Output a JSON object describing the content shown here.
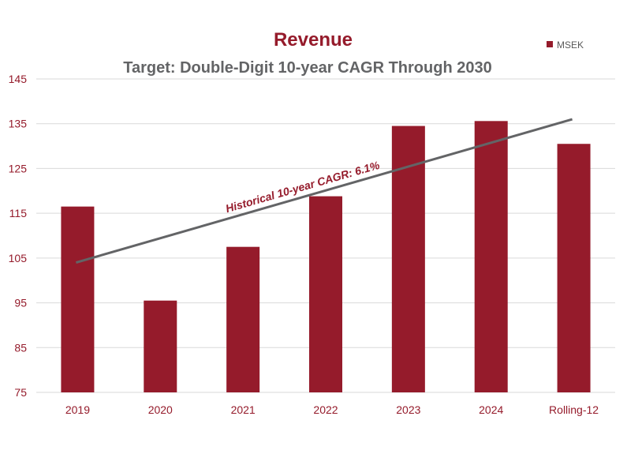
{
  "colors": {
    "bar": "#951b2b",
    "trend": "#636466",
    "axis_text": "#951b2b",
    "subtitle": "#636466",
    "grid": "#d9d9d9",
    "annotation": "#951b2b"
  },
  "chart_data": {
    "type": "bar",
    "title": "Revenue",
    "subtitle": "Target: Double-Digit 10-year CAGR Through 2030",
    "categories": [
      "2019",
      "2020",
      "2021",
      "2022",
      "2023",
      "2024",
      "Rolling-12"
    ],
    "series": [
      {
        "name": "MSEK",
        "values": [
          116.5,
          95.5,
          107.5,
          118.8,
          134.5,
          135.6,
          130.5
        ]
      }
    ],
    "trend_line": {
      "start_value": 104.0,
      "end_value": 136.0
    },
    "annotation": "Historical 10-year CAGR: 6.1%",
    "ylim": [
      75,
      145
    ],
    "yticks": [
      "75",
      "85",
      "95",
      "105",
      "115",
      "125",
      "135",
      "145"
    ],
    "grid": true,
    "legend": "top-right",
    "xlabel": "",
    "ylabel": ""
  }
}
